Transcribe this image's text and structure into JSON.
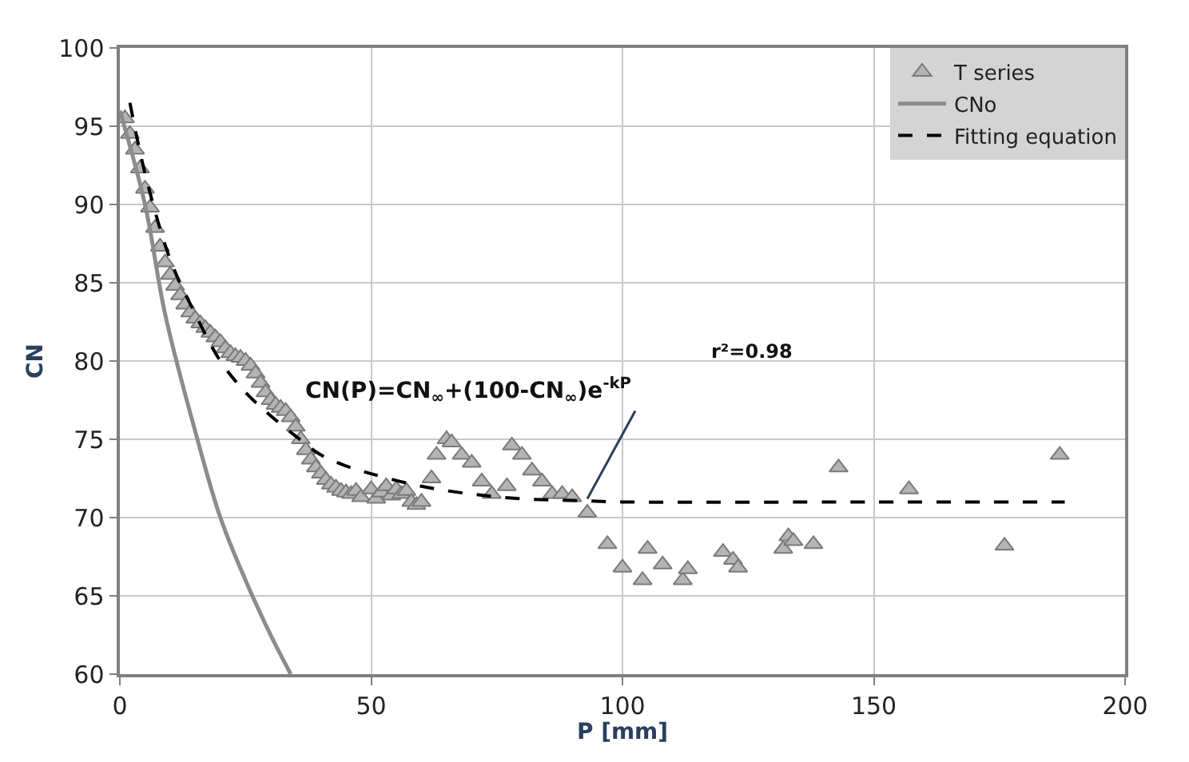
{
  "chart_data": {
    "type": "scatter",
    "xlabel": "P [mm]",
    "ylabel": "CN",
    "xlim": [
      0,
      200
    ],
    "xticks": [
      0,
      50,
      100,
      150,
      200
    ],
    "ylim": [
      60,
      100
    ],
    "yticks": [
      60,
      65,
      70,
      75,
      80,
      85,
      90,
      95,
      100
    ],
    "grid": true,
    "legend": "top right",
    "annotations": [
      {
        "text": "CN(P)=CN$_{∞}$+(100-CN$_{∞}$)e$^{-kP}$",
        "x": 93,
        "y": 71.2
      },
      "r²=0.98"
    ],
    "series": [
      {
        "name": "T series",
        "marker": "triangle",
        "color": "#b4b4b4",
        "x": [
          1,
          2,
          3,
          4,
          5,
          6,
          7,
          8,
          9,
          10,
          11,
          12,
          13,
          14,
          15,
          16,
          17,
          18,
          19,
          20,
          21,
          22,
          23,
          24,
          25,
          26,
          27,
          28,
          29,
          30,
          31,
          32,
          33,
          34,
          35,
          36,
          37,
          38,
          39,
          40,
          41,
          42,
          43,
          44,
          45,
          46,
          47,
          48,
          50,
          51,
          52,
          53,
          54,
          55,
          56,
          57,
          58,
          59,
          60,
          62,
          63,
          65,
          66,
          68,
          70,
          72,
          74,
          77,
          78,
          80,
          82,
          84,
          86,
          88,
          90,
          93,
          97,
          100,
          104,
          105,
          108,
          112,
          113,
          120,
          122,
          123,
          132,
          133,
          134,
          138,
          143,
          157,
          176,
          187
        ],
        "values": [
          95.5,
          94.5,
          93.5,
          92.3,
          91,
          89.8,
          88.5,
          87.3,
          86.3,
          85.5,
          84.8,
          84.2,
          83.6,
          83.1,
          82.7,
          82.4,
          82.1,
          81.8,
          81.5,
          81.2,
          80.8,
          80.5,
          80.3,
          80.2,
          80,
          79.7,
          79.2,
          78.6,
          78,
          77.5,
          77.2,
          77,
          76.8,
          76.4,
          75.8,
          75,
          74.3,
          73.7,
          73.2,
          72.8,
          72.4,
          72.1,
          71.9,
          71.7,
          71.6,
          71.5,
          71.7,
          71.3,
          71.8,
          71.2,
          71.6,
          72,
          71.4,
          71.8,
          71.5,
          71.7,
          71,
          70.8,
          71,
          72.5,
          74,
          75,
          74.8,
          74,
          73.5,
          72.3,
          71.5,
          72,
          74.6,
          74,
          73,
          72.3,
          71.5,
          71.5,
          71.3,
          70.3,
          68.3,
          66.8,
          66,
          68,
          67,
          66,
          66.7,
          67.8,
          67.3,
          66.8,
          68,
          68.8,
          68.5,
          68.3,
          73.2,
          71.8,
          68.2,
          74
        ]
      },
      {
        "name": "CNo",
        "type": "line",
        "line_style": "solid",
        "color": "#8c8c8c",
        "x": [
          0,
          5,
          9,
          15,
          20,
          25,
          30,
          34
        ],
        "values": [
          96,
          90,
          83,
          75.5,
          70,
          66,
          62.5,
          60
        ]
      },
      {
        "name": "Fitting equation",
        "type": "line",
        "line_style": "dashed",
        "color": "#000000",
        "x": [
          2,
          5,
          10,
          15,
          20,
          25,
          30,
          35,
          40,
          45,
          50,
          60,
          70,
          80,
          90,
          100,
          150,
          188
        ],
        "values": [
          96.5,
          92,
          86.5,
          83,
          80,
          78,
          76.5,
          75.2,
          74,
          73.3,
          72.8,
          72,
          71.5,
          71.2,
          71.1,
          71,
          71,
          71
        ]
      }
    ]
  }
}
